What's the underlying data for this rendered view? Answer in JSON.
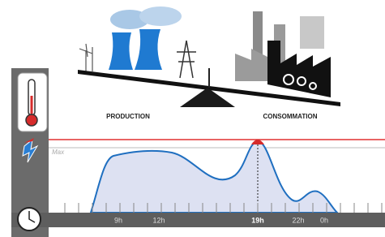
{
  "scale": {
    "left_label": "PRODUCTION",
    "right_label": "CONSOMMATION"
  },
  "chart": {
    "max_label": "Max",
    "time_labels": [
      "9h",
      "12h",
      "19h",
      "22h",
      "0h"
    ]
  }
}
